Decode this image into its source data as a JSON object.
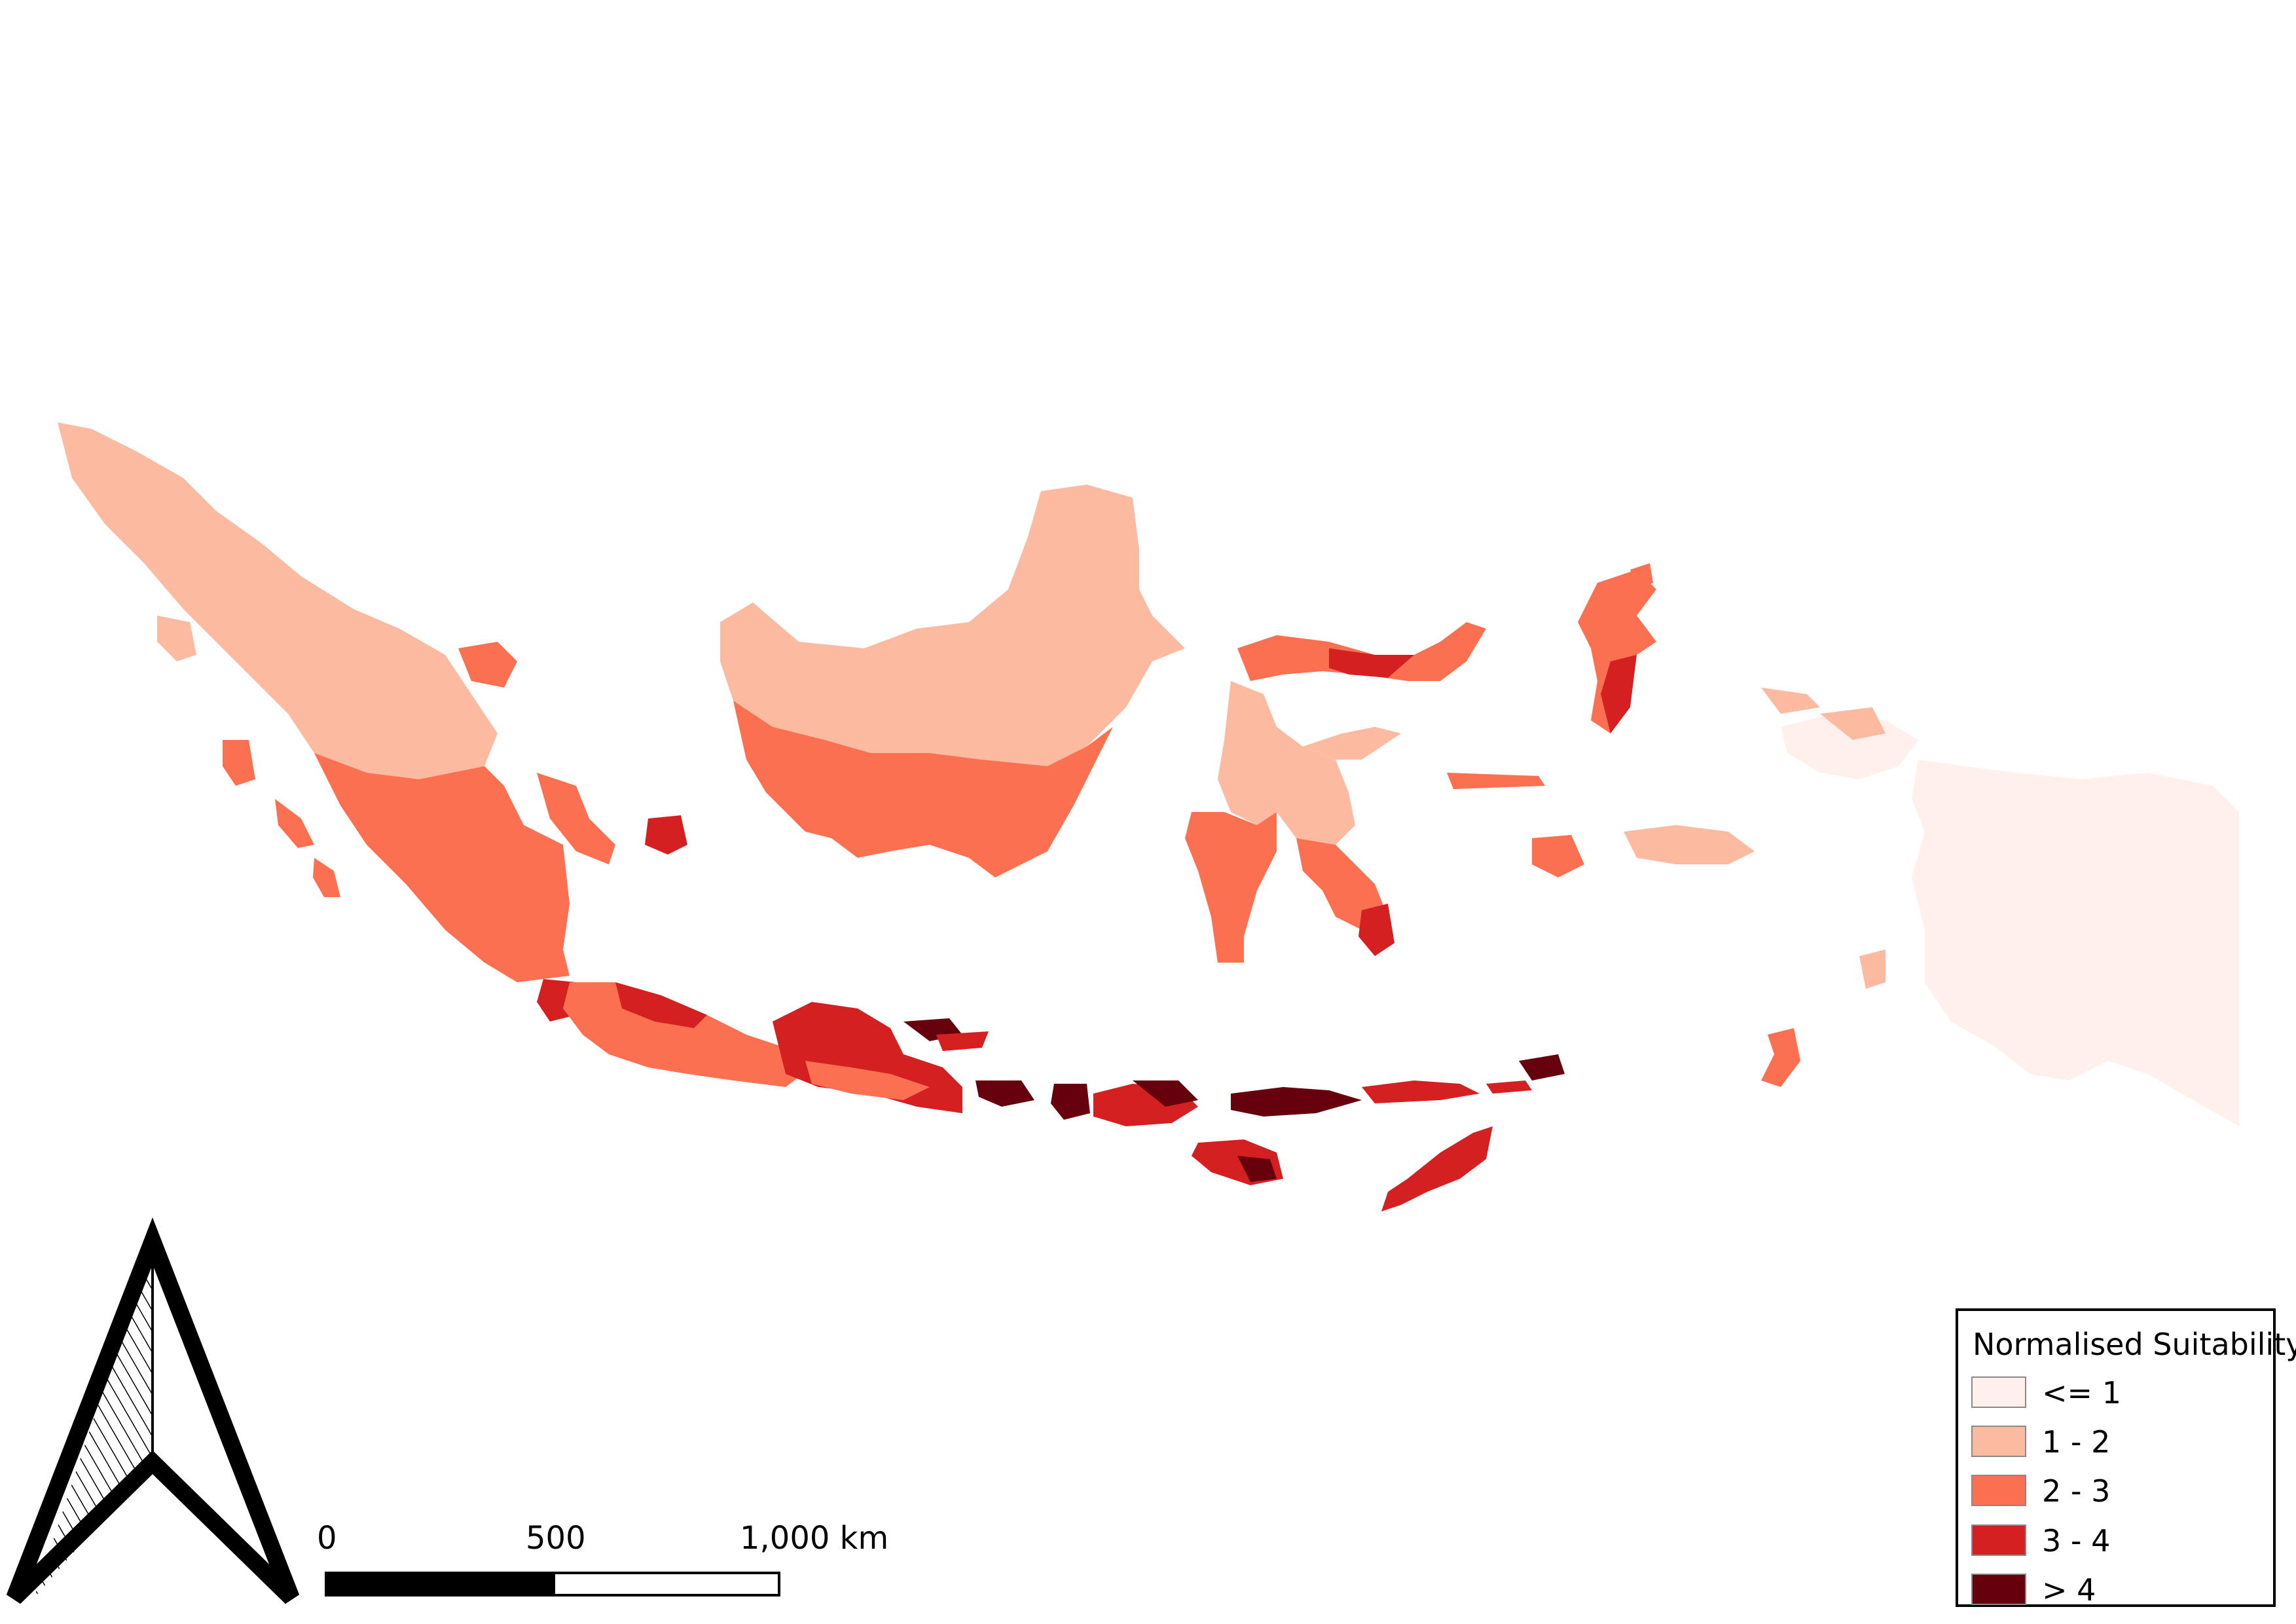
{
  "legend": {
    "title": "Normalised Suitability",
    "classes": [
      {
        "label": "<= 1",
        "color": "#fff0ec"
      },
      {
        "label": "1 - 2",
        "color": "#fcbba1"
      },
      {
        "label": "2 - 3",
        "color": "#fb7050"
      },
      {
        "label": "3 - 4",
        "color": "#d42020"
      },
      {
        "label": "> 4",
        "color": "#67000d"
      }
    ]
  },
  "scale_bar": {
    "labels": [
      "0",
      "500",
      "1,000 km"
    ]
  },
  "north_arrow": {
    "icon": "north-arrow-icon"
  }
}
